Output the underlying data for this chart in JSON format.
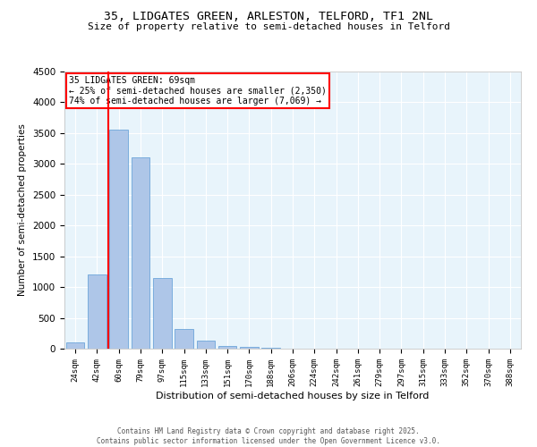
{
  "title1": "35, LIDGATES GREEN, ARLESTON, TELFORD, TF1 2NL",
  "title2": "Size of property relative to semi-detached houses in Telford",
  "xlabel": "Distribution of semi-detached houses by size in Telford",
  "ylabel": "Number of semi-detached properties",
  "categories": [
    "24sqm",
    "42sqm",
    "60sqm",
    "79sqm",
    "97sqm",
    "115sqm",
    "133sqm",
    "151sqm",
    "170sqm",
    "188sqm",
    "206sqm",
    "224sqm",
    "242sqm",
    "261sqm",
    "279sqm",
    "297sqm",
    "315sqm",
    "333sqm",
    "352sqm",
    "370sqm",
    "388sqm"
  ],
  "values": [
    100,
    1200,
    3550,
    3100,
    1150,
    320,
    130,
    50,
    30,
    10,
    5,
    0,
    0,
    0,
    0,
    0,
    0,
    0,
    0,
    0,
    0
  ],
  "bar_color": "#aec6e8",
  "bar_edge_color": "#5b9bd5",
  "vline_color": "red",
  "vline_pos": 1.5,
  "ylim": [
    0,
    4500
  ],
  "yticks": [
    0,
    500,
    1000,
    1500,
    2000,
    2500,
    3000,
    3500,
    4000,
    4500
  ],
  "annotation_title": "35 LIDGATES GREEN: 69sqm",
  "annotation_line1": "← 25% of semi-detached houses are smaller (2,350)",
  "annotation_line2": "74% of semi-detached houses are larger (7,069) →",
  "annotation_box_color": "red",
  "footer1": "Contains HM Land Registry data © Crown copyright and database right 2025.",
  "footer2": "Contains public sector information licensed under the Open Government Licence v3.0.",
  "bg_color": "#e8f4fb",
  "grid_color": "white",
  "fig_bg": "white"
}
